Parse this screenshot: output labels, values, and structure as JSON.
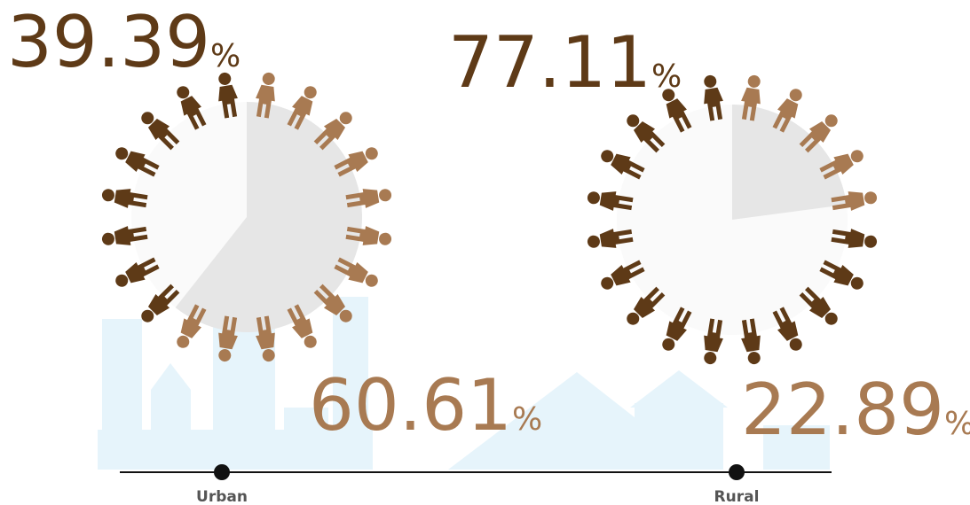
{
  "chart_data": {
    "type": "pictorial-ring",
    "categories": [
      "Urban",
      "Rural"
    ],
    "unit": "%",
    "series": [
      {
        "color": "#5e3a17",
        "values": [
          39.39,
          77.11
        ]
      },
      {
        "color": "#a87a52",
        "values": [
          60.61,
          22.89
        ]
      }
    ],
    "ylim": [
      0,
      100
    ]
  }
}
